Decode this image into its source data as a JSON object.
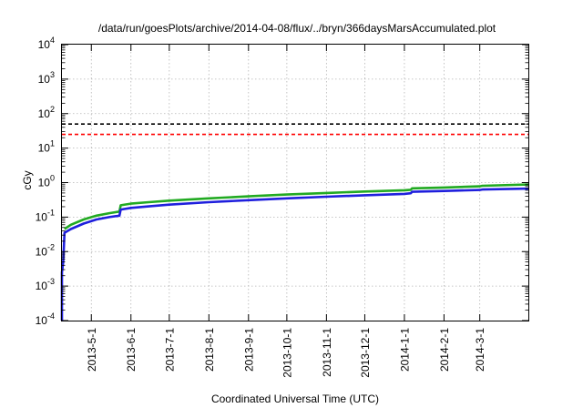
{
  "chart_data": {
    "type": "line",
    "title": "/data/run/goesPlots/archive/2014-04-08/flux/../bryn/366daysMarsAccumulated.plot",
    "xlabel": "Coordinated Universal Time (UTC)",
    "ylabel": "cGy",
    "y_scale": "log",
    "ylim": [
      0.0001,
      10000
    ],
    "y_ticks": [
      {
        "value": 0.0001,
        "base": "10",
        "exp": "-4"
      },
      {
        "value": 0.001,
        "base": "10",
        "exp": "-3"
      },
      {
        "value": 0.01,
        "base": "10",
        "exp": "-2"
      },
      {
        "value": 0.1,
        "base": "10",
        "exp": "-1"
      },
      {
        "value": 1,
        "base": "10",
        "exp": "0"
      },
      {
        "value": 10,
        "base": "10",
        "exp": "1"
      },
      {
        "value": 100,
        "base": "10",
        "exp": "2"
      },
      {
        "value": 1000,
        "base": "10",
        "exp": "3"
      },
      {
        "value": 10000,
        "base": "10",
        "exp": "4"
      }
    ],
    "xlim": [
      "2013-04-08",
      "2014-04-08"
    ],
    "x_ticks": [
      "2013-5-1",
      "2013-6-1",
      "2013-7-1",
      "2013-8-1",
      "2013-9-1",
      "2013-10-1",
      "2013-11-1",
      "2013-12-1",
      "2014-1-1",
      "2014-2-1",
      "2014-3-1"
    ],
    "x_tick_dates": [
      "2013-05-01",
      "2013-06-01",
      "2013-07-01",
      "2013-08-01",
      "2013-09-01",
      "2013-10-01",
      "2013-11-01",
      "2013-12-01",
      "2014-01-01",
      "2014-02-01",
      "2014-03-01"
    ],
    "grid": true,
    "hlines": [
      {
        "y": 50,
        "color": "#000000",
        "style": "dashed"
      },
      {
        "y": 25,
        "color": "#ff0000",
        "style": "dashed"
      }
    ],
    "series": [
      {
        "color": "#22aa22",
        "points": [
          [
            "2013-04-10",
            0.045
          ],
          [
            "2013-04-15",
            0.06
          ],
          [
            "2013-04-25",
            0.085
          ],
          [
            "2013-05-05",
            0.11
          ],
          [
            "2013-05-15",
            0.13
          ],
          [
            "2013-05-23",
            0.145
          ],
          [
            "2013-05-24",
            0.22
          ],
          [
            "2013-06-01",
            0.245
          ],
          [
            "2013-06-15",
            0.27
          ],
          [
            "2013-07-01",
            0.3
          ],
          [
            "2013-08-01",
            0.35
          ],
          [
            "2013-09-01",
            0.4
          ],
          [
            "2013-10-01",
            0.45
          ],
          [
            "2013-11-01",
            0.5
          ],
          [
            "2013-12-01",
            0.55
          ],
          [
            "2014-01-01",
            0.6
          ],
          [
            "2014-01-06",
            0.62
          ],
          [
            "2014-01-07",
            0.68
          ],
          [
            "2014-02-01",
            0.72
          ],
          [
            "2014-03-01",
            0.78
          ],
          [
            "2014-03-03",
            0.81
          ],
          [
            "2014-04-08",
            0.88
          ]
        ]
      },
      {
        "color": "#1f1fdd",
        "points": [
          [
            "2013-04-08",
            0.0001
          ],
          [
            "2013-04-08",
            0.0025
          ],
          [
            "2013-04-09",
            0.005
          ],
          [
            "2013-04-10",
            0.035
          ],
          [
            "2013-04-15",
            0.045
          ],
          [
            "2013-04-25",
            0.065
          ],
          [
            "2013-05-05",
            0.085
          ],
          [
            "2013-05-15",
            0.1
          ],
          [
            "2013-05-23",
            0.11
          ],
          [
            "2013-05-24",
            0.165
          ],
          [
            "2013-06-01",
            0.185
          ],
          [
            "2013-06-15",
            0.205
          ],
          [
            "2013-07-01",
            0.23
          ],
          [
            "2013-08-01",
            0.27
          ],
          [
            "2013-09-01",
            0.31
          ],
          [
            "2013-10-01",
            0.35
          ],
          [
            "2013-11-01",
            0.39
          ],
          [
            "2013-12-01",
            0.43
          ],
          [
            "2014-01-01",
            0.47
          ],
          [
            "2014-01-06",
            0.49
          ],
          [
            "2014-01-07",
            0.54
          ],
          [
            "2014-02-01",
            0.57
          ],
          [
            "2014-03-01",
            0.61
          ],
          [
            "2014-03-03",
            0.63
          ],
          [
            "2014-04-08",
            0.67
          ]
        ]
      }
    ]
  }
}
